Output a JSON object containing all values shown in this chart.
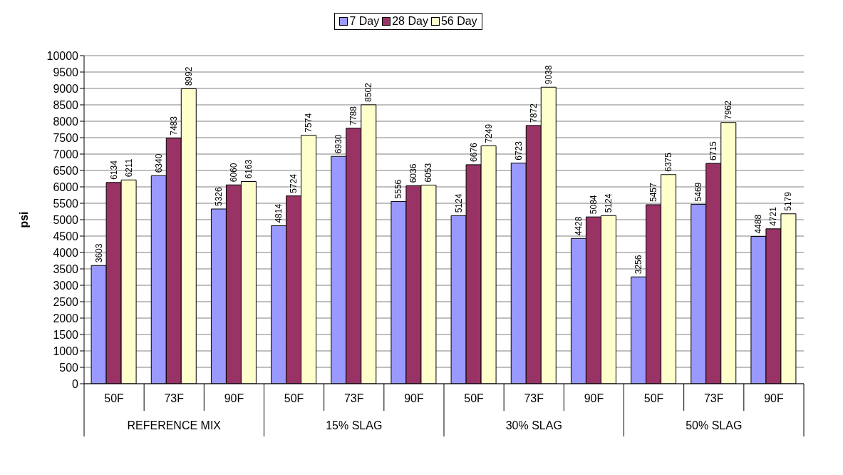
{
  "chart_data": {
    "type": "bar",
    "ylabel": "psi",
    "categories": [
      "50F",
      "73F",
      "90F",
      "50F",
      "73F",
      "90F",
      "50F",
      "73F",
      "90F",
      "50F",
      "73F",
      "90F"
    ],
    "annotations": [
      "REFERENCE MIX",
      "15% SLAG",
      "30% SLAG",
      "50% SLAG"
    ],
    "series": [
      {
        "name": "7 Day",
        "color": "#9999ff",
        "values": [
          3603,
          6340,
          5326,
          4814,
          6930,
          5556,
          5124,
          6723,
          4428,
          3256,
          5469,
          4488
        ]
      },
      {
        "name": "28 Day",
        "color": "#993366",
        "values": [
          6134,
          7483,
          6060,
          5724,
          7788,
          6036,
          6676,
          7872,
          5084,
          5457,
          6715,
          4721
        ]
      },
      {
        "name": "56 Day",
        "color": "#ffffcc",
        "values": [
          6211,
          8992,
          6163,
          7574,
          8502,
          6053,
          7249,
          9038,
          5124,
          6375,
          7962,
          5179
        ]
      }
    ],
    "ylim": [
      0,
      10000
    ],
    "yticks": [
      0,
      500,
      1000,
      1500,
      2000,
      2500,
      3000,
      3500,
      4000,
      4500,
      5000,
      5500,
      6000,
      6500,
      7000,
      7500,
      8000,
      8500,
      9000,
      9500,
      10000
    ],
    "grid": "y",
    "legend": "top",
    "data_labels": true
  }
}
